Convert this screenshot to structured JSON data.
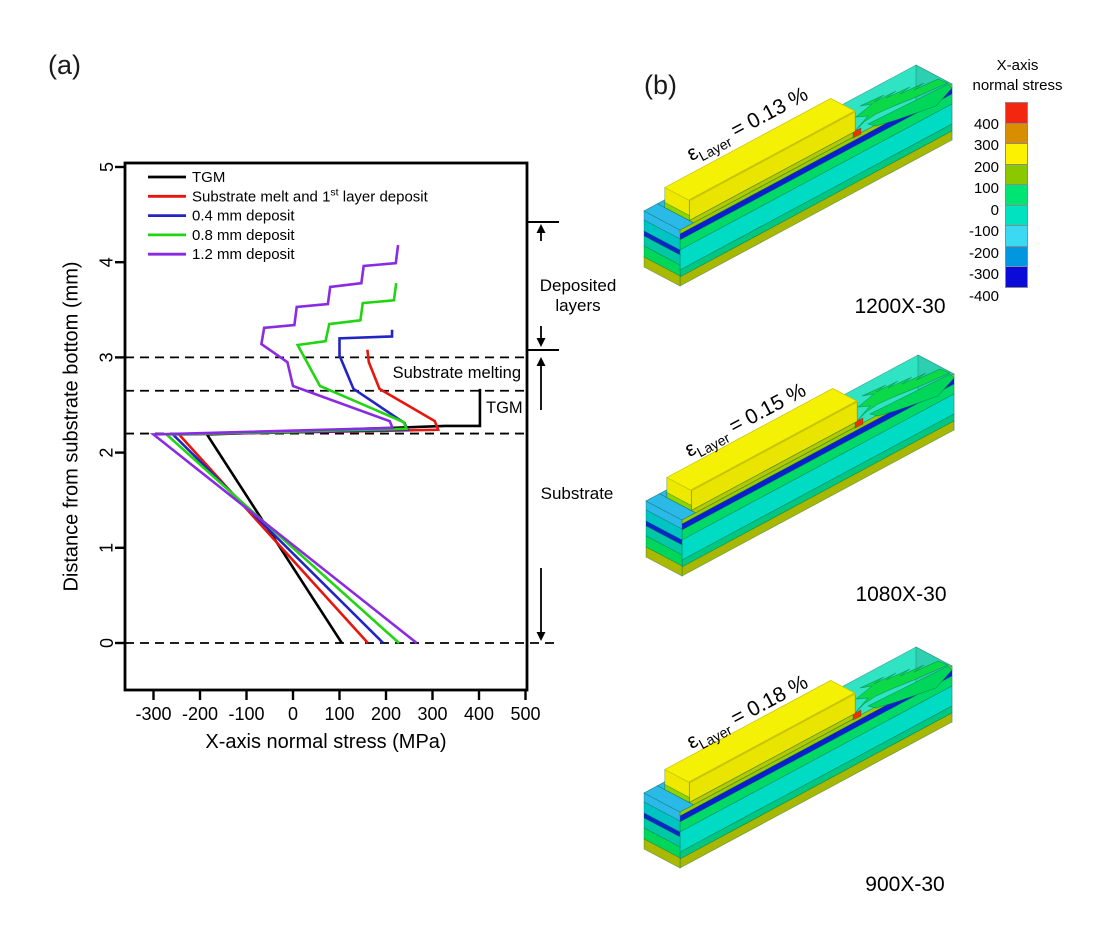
{
  "panel_a": {
    "label": "(a)",
    "x_axis": {
      "title": "X-axis normal stress (MPa)",
      "ticks": [
        "-300",
        "-200",
        "-100",
        "0",
        "100",
        "200",
        "300",
        "400",
        "500"
      ],
      "tick_values": [
        -300,
        -200,
        -100,
        0,
        100,
        200,
        300,
        400,
        500
      ]
    },
    "y_axis": {
      "title": "Distance from substrate bottom (mm)",
      "ticks": [
        "0",
        "1",
        "2",
        "3",
        "4",
        "5"
      ],
      "tick_values": [
        0,
        1,
        2,
        3,
        4,
        5
      ]
    },
    "legend": [
      {
        "pre": "TGM",
        "sup": "",
        "post": "",
        "color": "#000000"
      },
      {
        "pre": "Substrate melt and 1",
        "sup": "st",
        "post": " layer deposit",
        "color": "#e8150d"
      },
      {
        "pre": "0.4 mm deposit",
        "sup": "",
        "post": "",
        "color": "#2125c4"
      },
      {
        "pre": "0.8 mm deposit",
        "sup": "",
        "post": "",
        "color": "#22d412"
      },
      {
        "pre": "1.2 mm deposit",
        "sup": "",
        "post": "",
        "color": "#8a2be2"
      }
    ],
    "annotations": {
      "substrate_melting": "Substrate melting",
      "tgm": "TGM",
      "deposited_line1": "Deposited",
      "deposited_line2": "layers",
      "substrate": "Substrate"
    },
    "dashed_lines_mm": [
      3.0,
      2.65,
      2.2,
      0
    ]
  },
  "chart_data": {
    "type": "line",
    "xlabel": "X-axis normal stress (MPa)",
    "ylabel": "Distance from substrate bottom (mm)",
    "xlim": [
      -365,
      505
    ],
    "ylim": [
      -0.5,
      5.05
    ],
    "grid": false,
    "legend_position": "top-left",
    "series": [
      {
        "name": "TGM",
        "color": "#000000",
        "points": [
          [
            402,
            2.67
          ],
          [
            402,
            2.28
          ],
          [
            327,
            2.28
          ],
          [
            -185,
            2.19
          ],
          [
            105,
            0
          ]
        ]
      },
      {
        "name": "Substrate melt and 1st layer deposit",
        "color": "#e8150d",
        "points": [
          [
            160,
            3.08
          ],
          [
            163,
            2.95
          ],
          [
            186,
            2.67
          ],
          [
            305,
            2.33
          ],
          [
            312,
            2.24
          ],
          [
            -245,
            2.19
          ],
          [
            161,
            0
          ]
        ]
      },
      {
        "name": "0.4 mm deposit",
        "color": "#2125c4",
        "points": [
          [
            213,
            3.29
          ],
          [
            213,
            3.22
          ],
          [
            100,
            3.2
          ],
          [
            100,
            3.02
          ],
          [
            130,
            2.67
          ],
          [
            240,
            2.31
          ],
          [
            246,
            2.24
          ],
          [
            -258,
            2.19
          ],
          [
            194,
            0
          ]
        ]
      },
      {
        "name": "0.8 mm deposit",
        "color": "#22d412",
        "points": [
          [
            222,
            3.78
          ],
          [
            217,
            3.6
          ],
          [
            150,
            3.57
          ],
          [
            145,
            3.39
          ],
          [
            78,
            3.35
          ],
          [
            70,
            3.17
          ],
          [
            10,
            3.13
          ],
          [
            30,
            2.95
          ],
          [
            58,
            2.7
          ],
          [
            238,
            2.32
          ],
          [
            244,
            2.25
          ],
          [
            -272,
            2.19
          ],
          [
            228,
            0
          ]
        ]
      },
      {
        "name": "1.2 mm deposit",
        "color": "#8a2be2",
        "points": [
          [
            226,
            4.18
          ],
          [
            221,
            3.99
          ],
          [
            152,
            3.96
          ],
          [
            147,
            3.78
          ],
          [
            80,
            3.74
          ],
          [
            75,
            3.56
          ],
          [
            8,
            3.53
          ],
          [
            3,
            3.34
          ],
          [
            -62,
            3.31
          ],
          [
            -68,
            3.14
          ],
          [
            -12,
            2.95
          ],
          [
            0,
            2.7
          ],
          [
            208,
            2.33
          ],
          [
            214,
            2.26
          ],
          [
            -300,
            2.19
          ],
          [
            266,
            0
          ]
        ]
      }
    ]
  },
  "panel_b": {
    "label": "(b)",
    "colorbar": {
      "title_line1": "X-axis",
      "title_line2": "normal stress",
      "tick_labels": [
        "400",
        "300",
        "200",
        "100",
        "0",
        "-100",
        "-200",
        "-300",
        "-400"
      ],
      "colors": [
        "#f3270f",
        "#d98e00",
        "#fbf100",
        "#8cc800",
        "#00e473",
        "#00e2c0",
        "#3cd9f2",
        "#0096e0",
        "#0a0ad9"
      ]
    },
    "cases": [
      {
        "strain_symbol": "ε",
        "strain_sub": "Layer",
        "strain_value": " = 0.13 %",
        "name": "1200X-30"
      },
      {
        "strain_symbol": "ε",
        "strain_sub": "Layer",
        "strain_value": " = 0.15 %",
        "name": "1080X-30"
      },
      {
        "strain_symbol": "ε",
        "strain_sub": "Layer",
        "strain_value": " = 0.18 %",
        "name": "900X-30"
      }
    ]
  }
}
